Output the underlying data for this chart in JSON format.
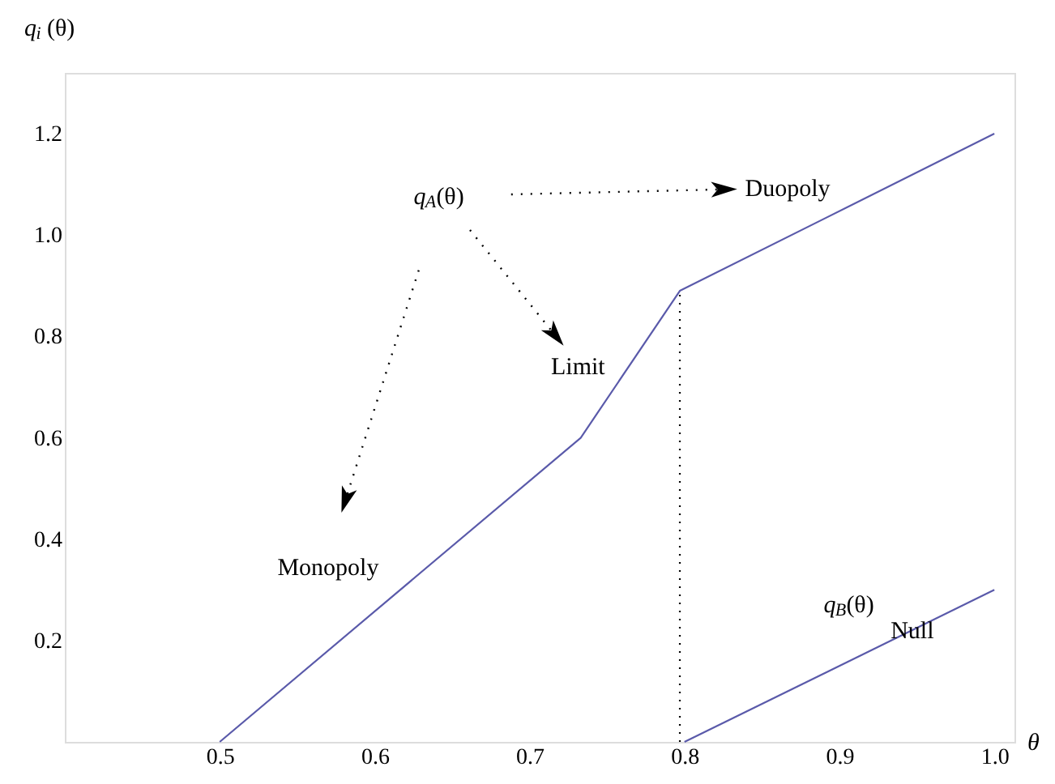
{
  "chart_data": {
    "type": "line",
    "xlabel": "θ",
    "ylabel": "q$_{i}$(θ)",
    "series": [
      {
        "color": "#5a5aaa",
        "x": [
          0.5,
          0.733,
          0.797,
          1.0
        ],
        "values": [
          0,
          0.6,
          0.89,
          1.2
        ]
      },
      {
        "color": "#5a5aaa",
        "x": [
          0.8,
          1.0
        ],
        "values": [
          0,
          0.3
        ]
      },
      {
        "color": "#000000",
        "line_style": "dotted",
        "x": [
          0.797,
          0.797
        ],
        "values": [
          0,
          0.89
        ]
      }
    ],
    "annotations": [
      "q$_{A}$(θ)",
      "Duopoly",
      "Limit",
      "Monopoly",
      "q$_{B}$(θ)",
      "Null"
    ],
    "xlim": [
      0.4,
      1.013
    ],
    "ylim": [
      0,
      1.32
    ],
    "xticks": [
      0.5,
      0.6,
      0.7,
      0.8,
      0.9,
      {
        "value": 1.0,
        "label": "1.0"
      }
    ],
    "yticks": [
      0.2,
      0.4,
      0.6,
      0.8,
      {
        "value": 1.0,
        "label": "1.0"
      },
      1.2
    ],
    "grid": false,
    "marker": "none",
    "line_style": "solid"
  }
}
